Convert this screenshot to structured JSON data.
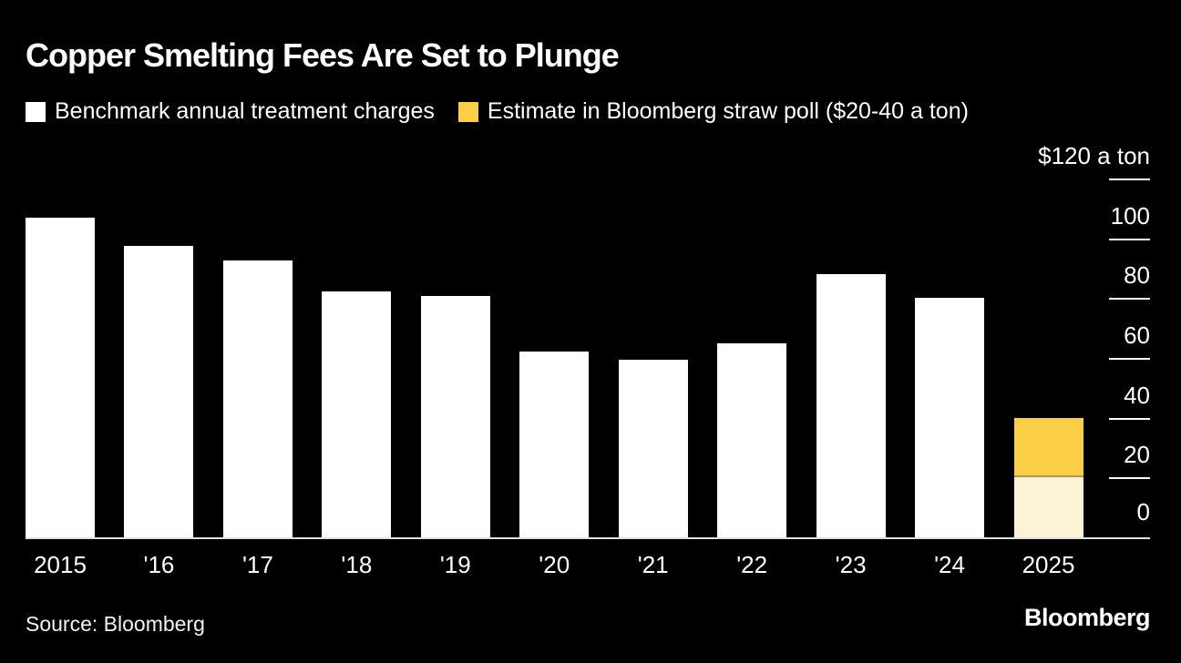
{
  "header": {
    "title": "Copper Smelting Fees Are Set to Plunge"
  },
  "legend": {
    "items": [
      {
        "label": "Benchmark annual treatment charges",
        "color": "#FFFFFF"
      },
      {
        "label": "Estimate in Bloomberg straw poll ($20-40 a ton)",
        "color": "#FBCF45"
      }
    ]
  },
  "chart_data": {
    "type": "bar",
    "title": "Copper Smelting Fees Are Set to Plunge",
    "categories": [
      "2015",
      "'16",
      "'17",
      "'18",
      "'19",
      "'20",
      "'21",
      "'22",
      "'23",
      "'24",
      "2025"
    ],
    "series": [
      {
        "name": "Benchmark annual treatment charges",
        "color": "#FFFFFF",
        "values": [
          107,
          97.35,
          92.5,
          82.25,
          80.8,
          62,
          59.5,
          65,
          88,
          80,
          null
        ]
      }
    ],
    "estimate": {
      "name": "Estimate in Bloomberg straw poll ($20-40 a ton)",
      "category": "2025",
      "low": 20,
      "high": 40,
      "color": "#FBCF45",
      "color_low": "#FCF2D5",
      "divider_color": "#a89a4e"
    },
    "y_axis": {
      "max": 120,
      "top_label": "$120 a ton",
      "ticks": [
        120,
        100,
        80,
        60,
        40,
        20,
        0
      ]
    },
    "grid": "off",
    "legend_position": "top",
    "background": "#000000"
  },
  "footer": {
    "source": "Source: Bloomberg",
    "logo": "Bloomberg"
  }
}
